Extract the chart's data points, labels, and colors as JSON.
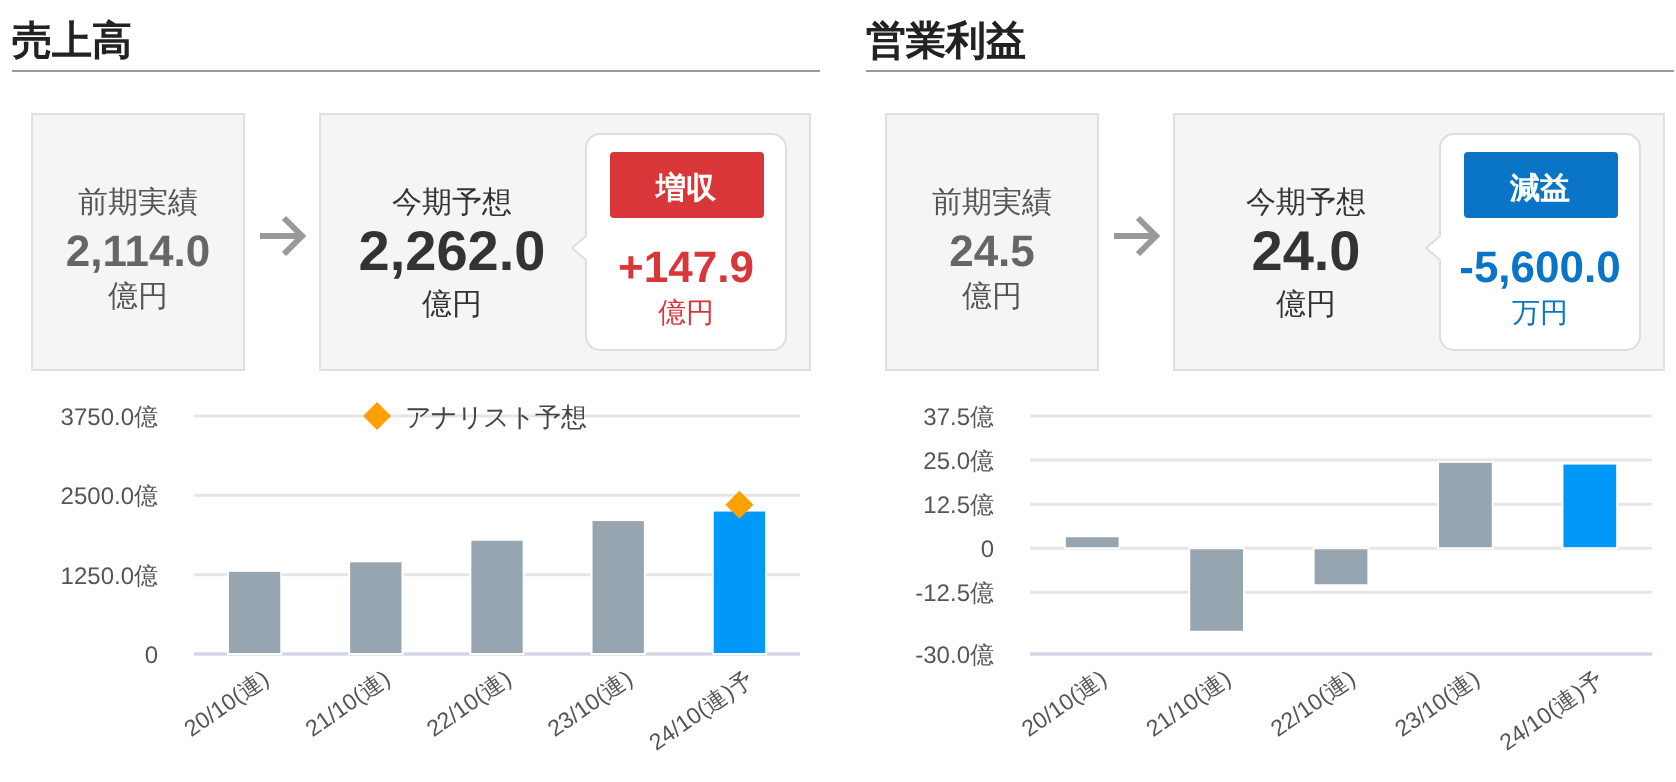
{
  "chart_data": [
    {
      "type": "other",
      "title": "売上高",
      "color": "#d9363a",
      "annotations": [
        "前期実績",
        "2,114.0",
        "億円",
        "今期予想",
        "2,262.0",
        "億円",
        "増収",
        "+147.9",
        "億円"
      ]
    },
    {
      "type": "bar",
      "categories": [
        "20/10(連)",
        "21/10(連)",
        "22/10(連)",
        "23/10(連)",
        "24/10(連)予"
      ],
      "series": [
        {
          "type": "bar",
          "colors": [
            "#97a5b1",
            "#97a5b1",
            "#97a5b1",
            "#97a5b1",
            "#0099f7"
          ],
          "values": [
            1310,
            1460,
            1800,
            2110,
            2260
          ]
        },
        {
          "type": "scatter",
          "name": "アナリスト予想",
          "color": "#ff9f00",
          "x": [
            "24/10(連)予"
          ],
          "values": [
            2350
          ]
        }
      ],
      "ylim": [
        0,
        3750
      ],
      "yticks": [
        0,
        {
          "value": 1250,
          "label": "1250.0億"
        },
        {
          "value": 2500,
          "label": "2500.0億"
        },
        {
          "value": 3750,
          "label": "3750.0億"
        }
      ],
      "grid": "y",
      "legend": "top",
      "marker": "diamond"
    },
    {
      "type": "other",
      "title": "営業利益",
      "color": "#0a74c6",
      "annotations": [
        "前期実績",
        "24.5",
        "億円",
        "今期予想",
        "24.0",
        "億円",
        "減益",
        "-5,600.0",
        "万円"
      ]
    },
    {
      "type": "bar",
      "categories": [
        "20/10(連)",
        "21/10(連)",
        "22/10(連)",
        "23/10(連)",
        "24/10(連)予"
      ],
      "series": [
        {
          "type": "bar",
          "colors": [
            "#97a5b1",
            "#97a5b1",
            "#97a5b1",
            "#97a5b1",
            "#0099f7"
          ],
          "values": [
            3.4,
            -23.7,
            -10.5,
            24.5,
            24.0
          ]
        }
      ],
      "ylim": [
        -30,
        37.5
      ],
      "yticks": [
        {
          "value": -30,
          "label": "-30.0億"
        },
        {
          "value": -12.5,
          "label": "-12.5億"
        },
        0,
        {
          "value": 12.5,
          "label": "12.5億"
        },
        {
          "value": 25,
          "label": "25.0億"
        },
        {
          "value": 37.5,
          "label": "37.5億"
        }
      ],
      "grid": "y"
    }
  ]
}
